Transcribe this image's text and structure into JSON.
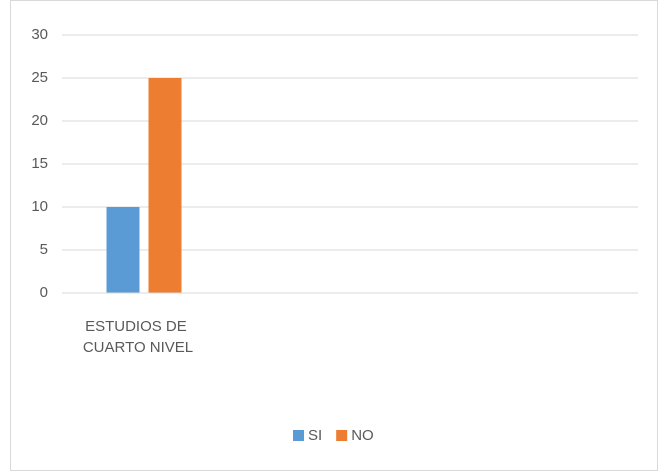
{
  "chart_data": {
    "type": "bar",
    "categories": [
      "ESTUDIOS DE CUARTO NIVEL",
      null,
      null,
      null
    ],
    "series": [
      {
        "name": "SI",
        "color": "#5b9bd5",
        "values": [
          10,
          null,
          null,
          null
        ]
      },
      {
        "name": "NO",
        "color": "#ed7d31",
        "values": [
          25,
          null,
          null,
          null
        ]
      }
    ],
    "ylim": [
      0,
      30
    ],
    "yticks": [
      0,
      5,
      10,
      15,
      20,
      25,
      30
    ],
    "grid": true,
    "legend": "bottom"
  }
}
